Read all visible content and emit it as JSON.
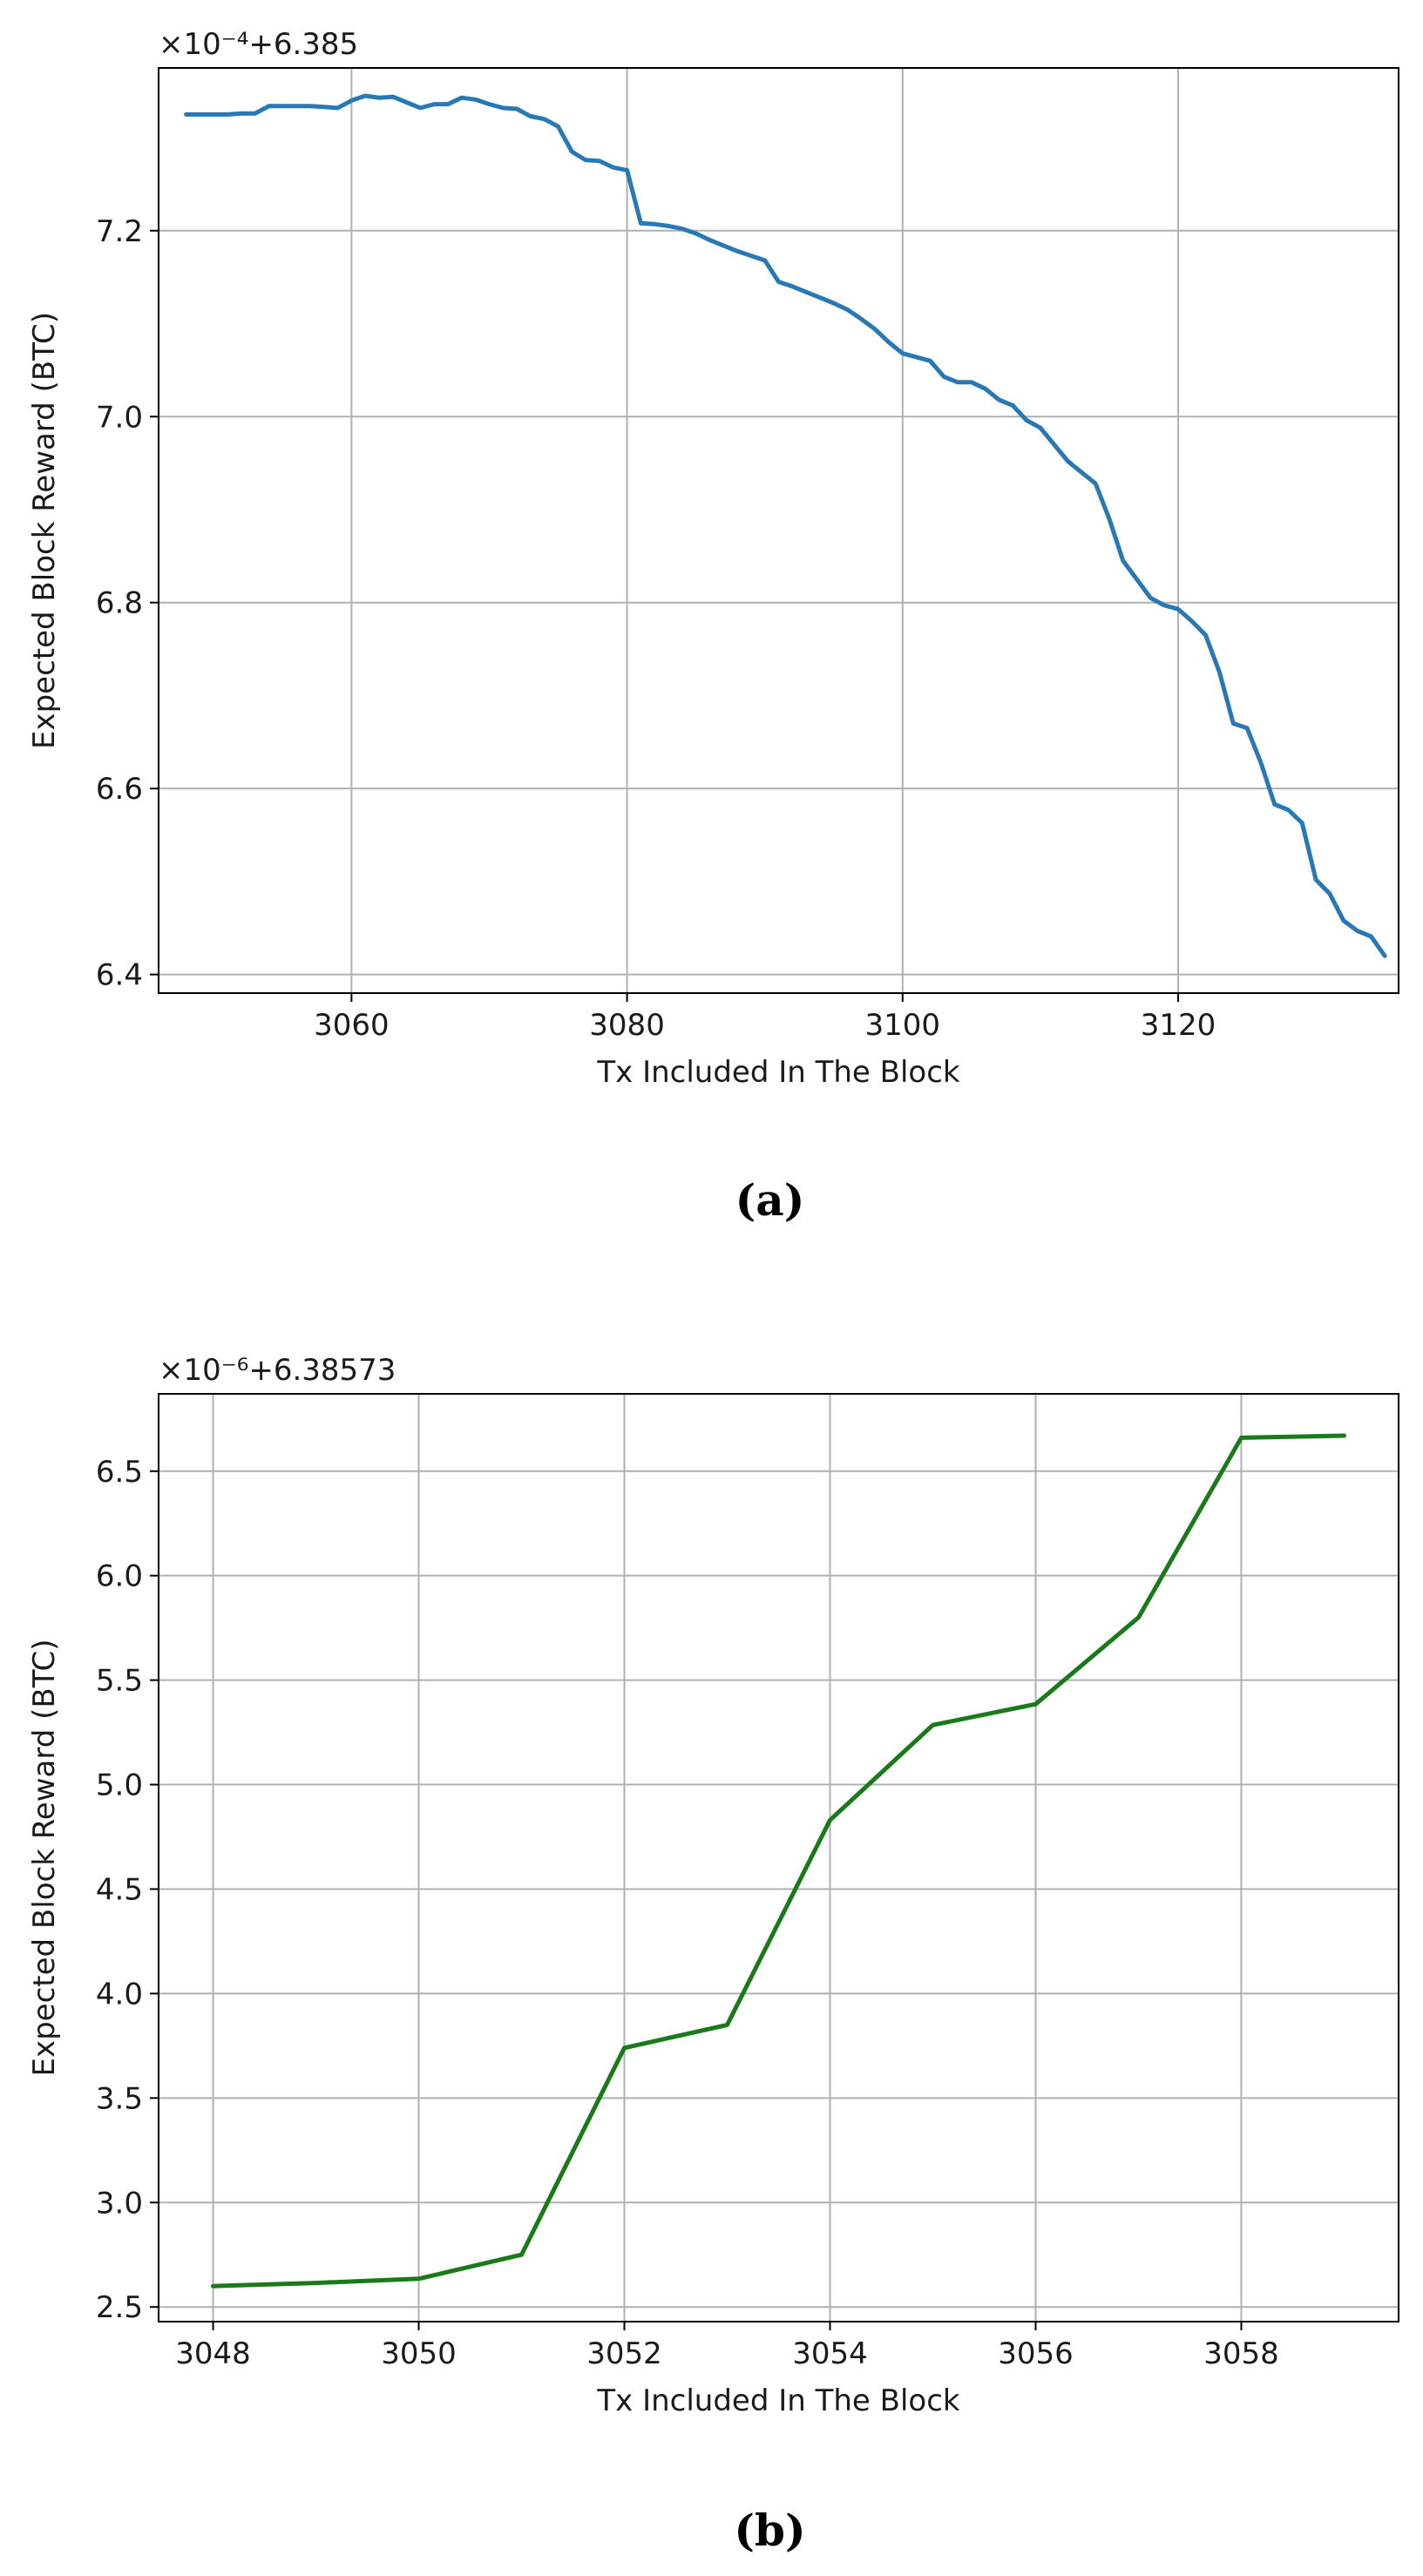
{
  "figure": {
    "panels": [
      {
        "caption": "(a)",
        "offset_label": "×10⁻⁴+6.385",
        "color": "#2878b5"
      },
      {
        "caption": "(b)",
        "offset_label": "×10⁻⁶+6.38573",
        "color": "#1a7a1a"
      }
    ]
  },
  "chart_data": [
    {
      "type": "line",
      "xlabel": "Tx Included In The Block",
      "ylabel": "Expected Block Reward (BTC)",
      "xlim": [
        3046,
        3136
      ],
      "ylim": [
        6.38,
        7.375
      ],
      "xticks": [
        3060,
        3080,
        3100,
        3120
      ],
      "yticks": [
        6.4,
        6.6,
        6.8,
        7.0,
        7.2
      ],
      "ytick_labels": [
        "6.4",
        "6.6",
        "6.8",
        "7.0",
        "7.2"
      ],
      "grid": true,
      "series": [
        {
          "x": [
            3048,
            3049,
            3050,
            3051,
            3052,
            3053,
            3054,
            3055,
            3056,
            3057,
            3058,
            3059,
            3060,
            3061,
            3062,
            3063,
            3064,
            3065,
            3066,
            3067,
            3068,
            3069,
            3070,
            3071,
            3072,
            3073,
            3074,
            3075,
            3076,
            3077,
            3078,
            3079,
            3080,
            3081,
            3082,
            3083,
            3084,
            3085,
            3086,
            3087,
            3088,
            3089,
            3090,
            3091,
            3092,
            3093,
            3094,
            3095,
            3096,
            3097,
            3098,
            3099,
            3100,
            3101,
            3102,
            3103,
            3104,
            3105,
            3106,
            3107,
            3108,
            3109,
            3110,
            3111,
            3112,
            3113,
            3114,
            3115,
            3116,
            3117,
            3118,
            3119,
            3120,
            3121,
            3122,
            3123,
            3124,
            3125,
            3126,
            3127,
            3128,
            3129,
            3130,
            3131,
            3132,
            3133,
            3134,
            3135
          ],
          "y": [
            7.325,
            7.325,
            7.325,
            7.325,
            7.326,
            7.326,
            7.334,
            7.334,
            7.334,
            7.334,
            7.333,
            7.332,
            7.34,
            7.345,
            7.343,
            7.344,
            7.338,
            7.332,
            7.336,
            7.336,
            7.343,
            7.341,
            7.336,
            7.332,
            7.331,
            7.323,
            7.32,
            7.312,
            7.285,
            7.276,
            7.275,
            7.268,
            7.265,
            7.208,
            7.207,
            7.205,
            7.202,
            7.197,
            7.19,
            7.184,
            7.178,
            7.173,
            7.168,
            7.145,
            7.14,
            7.134,
            7.128,
            7.122,
            7.115,
            7.105,
            7.094,
            7.08,
            7.068,
            7.064,
            7.06,
            7.043,
            7.037,
            7.037,
            7.03,
            7.018,
            7.012,
            6.996,
            6.988,
            6.97,
            6.952,
            6.94,
            6.928,
            6.89,
            6.845,
            6.825,
            6.805,
            6.797,
            6.793,
            6.78,
            6.765,
            6.725,
            6.67,
            6.665,
            6.628,
            6.583,
            6.577,
            6.563,
            6.502,
            6.487,
            6.458,
            6.447,
            6.441,
            6.42
          ]
        }
      ]
    },
    {
      "type": "line",
      "xlabel": "Tx Included In The Block",
      "ylabel": "Expected Block Reward (BTC)",
      "xlim": [
        3047.47,
        3059.53
      ],
      "ylim": [
        2.43,
        6.87
      ],
      "xticks": [
        3048,
        3050,
        3052,
        3054,
        3056,
        3058
      ],
      "yticks": [
        2.5,
        3.0,
        3.5,
        4.0,
        4.5,
        5.0,
        5.5,
        6.0,
        6.5
      ],
      "ytick_labels": [
        "2.5",
        "3.0",
        "3.5",
        "4.0",
        "4.5",
        "5.0",
        "5.5",
        "6.0",
        "6.5"
      ],
      "grid": true,
      "series": [
        {
          "x": [
            3048,
            3049,
            3050,
            3051,
            3052,
            3053,
            3054,
            3055,
            3056,
            3057,
            3058,
            3059
          ],
          "y": [
            2.6,
            2.615,
            2.635,
            2.75,
            3.74,
            3.85,
            4.83,
            5.285,
            5.385,
            5.8,
            6.66,
            6.67
          ]
        }
      ]
    }
  ]
}
